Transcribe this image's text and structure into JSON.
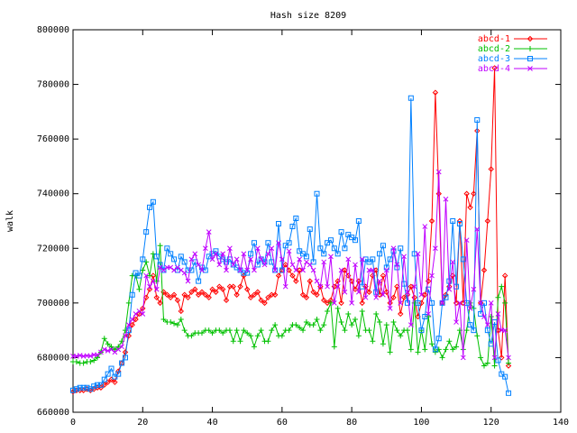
{
  "chart_data": {
    "type": "line",
    "title": "Hash size 8209",
    "xlabel": "",
    "ylabel": "walk",
    "xlim": [
      0,
      140
    ],
    "ylim": [
      660000,
      800000
    ],
    "x_ticks": [
      0,
      20,
      40,
      60,
      80,
      100,
      120,
      140
    ],
    "y_ticks": [
      660000,
      680000,
      700000,
      720000,
      740000,
      760000,
      780000,
      800000
    ],
    "x_tick_labels": [
      "0",
      "20",
      "40",
      "60",
      "80",
      "100",
      "120",
      "140"
    ],
    "y_tick_labels": [
      "660000",
      "680000",
      "700000",
      "720000",
      "740000",
      "760000",
      "780000",
      "800000"
    ],
    "grid": false,
    "legend_position": "top-right",
    "series": [
      {
        "name": "abcd-1",
        "color": "#ff0000",
        "marker": "diamond",
        "x": [
          0,
          1,
          2,
          3,
          4,
          5,
          6,
          7,
          8,
          9,
          10,
          11,
          12,
          13,
          14,
          15,
          16,
          17,
          18,
          19,
          20,
          21,
          22,
          23,
          24,
          25,
          26,
          27,
          28,
          29,
          30,
          31,
          32,
          33,
          34,
          35,
          36,
          37,
          38,
          39,
          40,
          41,
          42,
          43,
          44,
          45,
          46,
          47,
          48,
          49,
          50,
          51,
          52,
          53,
          54,
          55,
          56,
          57,
          58,
          59,
          60,
          61,
          62,
          63,
          64,
          65,
          66,
          67,
          68,
          69,
          70,
          71,
          72,
          73,
          74,
          75,
          76,
          77,
          78,
          79,
          80,
          81,
          82,
          83,
          84,
          85,
          86,
          87,
          88,
          89,
          90,
          91,
          92,
          93,
          94,
          95,
          96,
          97,
          98,
          99,
          100,
          101,
          102,
          103,
          104,
          105,
          106,
          107,
          108,
          109,
          110,
          111,
          112,
          113,
          114,
          115,
          116,
          117,
          118,
          119,
          120,
          121,
          122,
          123,
          124,
          125
        ],
        "y": [
          667500,
          668000,
          668000,
          668000,
          668500,
          668000,
          668500,
          669000,
          669000,
          670000,
          671000,
          672000,
          671000,
          675000,
          678000,
          682000,
          688000,
          692000,
          694000,
          696000,
          698000,
          702000,
          705000,
          710000,
          702000,
          700000,
          704000,
          703000,
          702000,
          703000,
          701000,
          697000,
          703000,
          702000,
          704000,
          705000,
          703000,
          704000,
          703000,
          702000,
          705000,
          704000,
          706000,
          705000,
          701000,
          706000,
          706000,
          703000,
          706000,
          710000,
          705000,
          702000,
          703000,
          704000,
          701000,
          700000,
          702000,
          703000,
          703000,
          710000,
          712000,
          714000,
          712000,
          710000,
          708000,
          712000,
          703000,
          702000,
          708000,
          704000,
          703000,
          706000,
          701000,
          700000,
          701000,
          706000,
          708000,
          700000,
          712000,
          710000,
          708000,
          705000,
          708000,
          700000,
          706000,
          704000,
          710000,
          712000,
          703000,
          710000,
          704000,
          700000,
          702000,
          706000,
          696000,
          702000,
          703000,
          706000,
          702000,
          695000,
          700000,
          703000,
          708000,
          730000,
          777000,
          740000,
          700000,
          703000,
          706000,
          710000,
          700000,
          730000,
          700000,
          740000,
          735000,
          740000,
          763000,
          700000,
          712000,
          730000,
          749000,
          786000,
          690000,
          680000,
          710000,
          677000
        ]
      },
      {
        "name": "abcd-2",
        "color": "#00c000",
        "marker": "plus",
        "x": [
          0,
          1,
          2,
          3,
          4,
          5,
          6,
          7,
          8,
          9,
          10,
          11,
          12,
          13,
          14,
          15,
          16,
          17,
          18,
          19,
          20,
          21,
          22,
          23,
          24,
          25,
          26,
          27,
          28,
          29,
          30,
          31,
          32,
          33,
          34,
          35,
          36,
          37,
          38,
          39,
          40,
          41,
          42,
          43,
          44,
          45,
          46,
          47,
          48,
          49,
          50,
          51,
          52,
          53,
          54,
          55,
          56,
          57,
          58,
          59,
          60,
          61,
          62,
          63,
          64,
          65,
          66,
          67,
          68,
          69,
          70,
          71,
          72,
          73,
          74,
          75,
          76,
          77,
          78,
          79,
          80,
          81,
          82,
          83,
          84,
          85,
          86,
          87,
          88,
          89,
          90,
          91,
          92,
          93,
          94,
          95,
          96,
          97,
          98,
          99,
          100,
          101,
          102,
          103,
          104,
          105,
          106,
          107,
          108,
          109,
          110,
          111,
          112,
          113,
          114,
          115,
          116,
          117,
          118,
          119,
          120,
          121,
          122,
          123,
          124,
          125
        ],
        "y": [
          678500,
          678500,
          678000,
          678000,
          678500,
          678500,
          679000,
          680000,
          682000,
          687000,
          685000,
          684000,
          683000,
          684000,
          686000,
          690000,
          700000,
          710000,
          710000,
          705000,
          712000,
          715000,
          710000,
          718000,
          708000,
          721000,
          694000,
          693000,
          693000,
          692500,
          692000,
          694000,
          690000,
          688000,
          688000,
          689000,
          689000,
          689000,
          690000,
          690000,
          689000,
          690000,
          690000,
          689000,
          690000,
          690000,
          686000,
          690000,
          686000,
          690000,
          689000,
          688000,
          684000,
          688000,
          690000,
          686000,
          686000,
          690000,
          692000,
          688000,
          688000,
          690000,
          690000,
          692000,
          692000,
          691000,
          690000,
          693000,
          692000,
          692000,
          694000,
          690000,
          692000,
          697000,
          700000,
          684000,
          698000,
          693000,
          690000,
          696000,
          692000,
          694000,
          688000,
          697000,
          690000,
          690000,
          686000,
          696000,
          693000,
          685000,
          692000,
          682000,
          693000,
          690000,
          688000,
          690000,
          690000,
          683000,
          700000,
          682000,
          690000,
          683000,
          695000,
          685000,
          682000,
          683000,
          680000,
          683000,
          686000,
          683000,
          684000,
          690000,
          683000,
          690000,
          700000,
          698000,
          688000,
          680000,
          677000,
          678000,
          695000,
          677000,
          702000,
          706000,
          700000,
          678000
        ]
      },
      {
        "name": "abcd-3",
        "color": "#0080ff",
        "marker": "square",
        "x": [
          0,
          1,
          2,
          3,
          4,
          5,
          6,
          7,
          8,
          9,
          10,
          11,
          12,
          13,
          14,
          15,
          16,
          17,
          18,
          19,
          20,
          21,
          22,
          23,
          24,
          25,
          26,
          27,
          28,
          29,
          30,
          31,
          32,
          33,
          34,
          35,
          36,
          37,
          38,
          39,
          40,
          41,
          42,
          43,
          44,
          45,
          46,
          47,
          48,
          49,
          50,
          51,
          52,
          53,
          54,
          55,
          56,
          57,
          58,
          59,
          60,
          61,
          62,
          63,
          64,
          65,
          66,
          67,
          68,
          69,
          70,
          71,
          72,
          73,
          74,
          75,
          76,
          77,
          78,
          79,
          80,
          81,
          82,
          83,
          84,
          85,
          86,
          87,
          88,
          89,
          90,
          91,
          92,
          93,
          94,
          95,
          96,
          97,
          98,
          99,
          100,
          101,
          102,
          103,
          104,
          105,
          106,
          107,
          108,
          109,
          110,
          111,
          112,
          113,
          114,
          115,
          116,
          117,
          118,
          119,
          120,
          121,
          122,
          123,
          124,
          125
        ],
        "y": [
          668000,
          668500,
          669000,
          669000,
          669000,
          668500,
          669500,
          670000,
          670000,
          672000,
          674000,
          676000,
          673000,
          674000,
          678000,
          680000,
          690000,
          703000,
          711000,
          710000,
          716000,
          726000,
          735000,
          737000,
          717000,
          714000,
          712000,
          720000,
          718000,
          716000,
          712000,
          717000,
          715000,
          712000,
          712000,
          715000,
          708000,
          713000,
          712000,
          717000,
          718000,
          719000,
          717000,
          716000,
          715000,
          716000,
          714000,
          713000,
          712000,
          711000,
          711000,
          718000,
          722000,
          714000,
          716000,
          715000,
          722000,
          715000,
          712000,
          729000,
          712000,
          721000,
          722000,
          728000,
          731000,
          719000,
          718000,
          717000,
          727000,
          715000,
          740000,
          720000,
          718000,
          722000,
          723000,
          720000,
          718000,
          726000,
          720000,
          725000,
          724000,
          723000,
          730000,
          706000,
          716000,
          715000,
          716000,
          704000,
          718000,
          721000,
          713000,
          716000,
          719000,
          713000,
          720000,
          707000,
          700000,
          775000,
          718000,
          700000,
          690000,
          695000,
          705000,
          700000,
          683000,
          687000,
          700000,
          702000,
          708000,
          730000,
          706000,
          729000,
          716000,
          700000,
          692000,
          690000,
          767000,
          696000,
          700000,
          690000,
          685000,
          693000,
          679000,
          674000,
          673000,
          667000
        ]
      },
      {
        "name": "abcd-4",
        "color": "#c000ff",
        "marker": "cross",
        "x": [
          0,
          1,
          2,
          3,
          4,
          5,
          6,
          7,
          8,
          9,
          10,
          11,
          12,
          13,
          14,
          15,
          16,
          17,
          18,
          19,
          20,
          21,
          22,
          23,
          24,
          25,
          26,
          27,
          28,
          29,
          30,
          31,
          32,
          33,
          34,
          35,
          36,
          37,
          38,
          39,
          40,
          41,
          42,
          43,
          44,
          45,
          46,
          47,
          48,
          49,
          50,
          51,
          52,
          53,
          54,
          55,
          56,
          57,
          58,
          59,
          60,
          61,
          62,
          63,
          64,
          65,
          66,
          67,
          68,
          69,
          70,
          71,
          72,
          73,
          74,
          75,
          76,
          77,
          78,
          79,
          80,
          81,
          82,
          83,
          84,
          85,
          86,
          87,
          88,
          89,
          90,
          91,
          92,
          93,
          94,
          95,
          96,
          97,
          98,
          99,
          100,
          101,
          102,
          103,
          104,
          105,
          106,
          107,
          108,
          109,
          110,
          111,
          112,
          113,
          114,
          115,
          116,
          117,
          118,
          119,
          120,
          121,
          122,
          123,
          124,
          125
        ],
        "y": [
          680500,
          680500,
          680800,
          680500,
          680700,
          680600,
          681000,
          681000,
          682000,
          683000,
          682500,
          683000,
          682000,
          683000,
          684000,
          688000,
          692000,
          694000,
          696000,
          697000,
          696000,
          710000,
          706000,
          708000,
          705000,
          713000,
          712000,
          713000,
          713000,
          712000,
          713000,
          712000,
          711000,
          708000,
          716000,
          718000,
          714000,
          712000,
          720000,
          726000,
          716000,
          718000,
          714000,
          718000,
          712000,
          720000,
          714000,
          716000,
          712000,
          718000,
          712000,
          716000,
          712000,
          720000,
          716000,
          714000,
          718000,
          720000,
          712000,
          722000,
          716000,
          706000,
          719000,
          714000,
          712000,
          716000,
          712000,
          715000,
          714000,
          712000,
          708000,
          706000,
          715000,
          706000,
          717000,
          700000,
          706000,
          712000,
          704000,
          716000,
          700000,
          714000,
          704000,
          716000,
          702000,
          712000,
          712000,
          702000,
          708000,
          703000,
          712000,
          698000,
          720000,
          714000,
          700000,
          717000,
          704000,
          692000,
          706000,
          718000,
          703000,
          728000,
          696000,
          710000,
          720000,
          748000,
          700000,
          738000,
          705000,
          715000,
          693000,
          700000,
          680000,
          723000,
          698000,
          705000,
          727000,
          700000,
          695000,
          692000,
          700000,
          680000,
          696000,
          690000,
          690000,
          680000
        ]
      }
    ]
  }
}
